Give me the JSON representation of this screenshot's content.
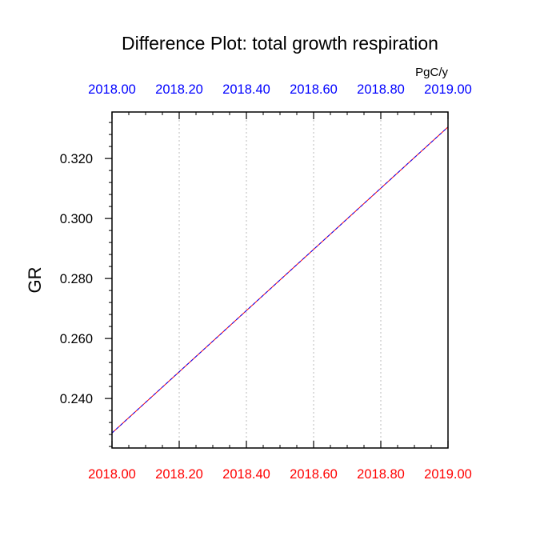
{
  "chart_data": {
    "type": "line",
    "title": "Difference Plot: total growth respiration",
    "units": "PgC/y",
    "ylabel": "GR",
    "xlim": [
      2018.0,
      2019.0
    ],
    "ylim": [
      0.2235,
      0.3355
    ],
    "bottom_xticks": [
      "2018.00",
      "2018.20",
      "2018.40",
      "2018.60",
      "2018.80",
      "2019.00"
    ],
    "top_xticks": [
      "2018.00",
      "2018.20",
      "2018.40",
      "2018.60",
      "2018.80",
      "2019.00"
    ],
    "xtick_values": [
      2018.0,
      2018.2,
      2018.4,
      2018.6,
      2018.8,
      2019.0
    ],
    "yticks": [
      "0.240",
      "0.260",
      "0.280",
      "0.300",
      "0.320"
    ],
    "ytick_values": [
      0.24,
      0.26,
      0.28,
      0.3,
      0.32
    ],
    "grid": true,
    "series": [
      {
        "color": "#ff0000",
        "dash": "solid",
        "x": [
          2018.0,
          2019.0
        ],
        "y": [
          0.2285,
          0.3305
        ]
      },
      {
        "color": "#0000ff",
        "dash": "dashed",
        "x": [
          2018.0,
          2019.0
        ],
        "y": [
          0.2285,
          0.3305
        ]
      }
    ],
    "colors": {
      "bottom_axis": "#ff0000",
      "top_axis": "#0000ff",
      "grid": "#bbbbbb",
      "frame": "#000000"
    }
  }
}
